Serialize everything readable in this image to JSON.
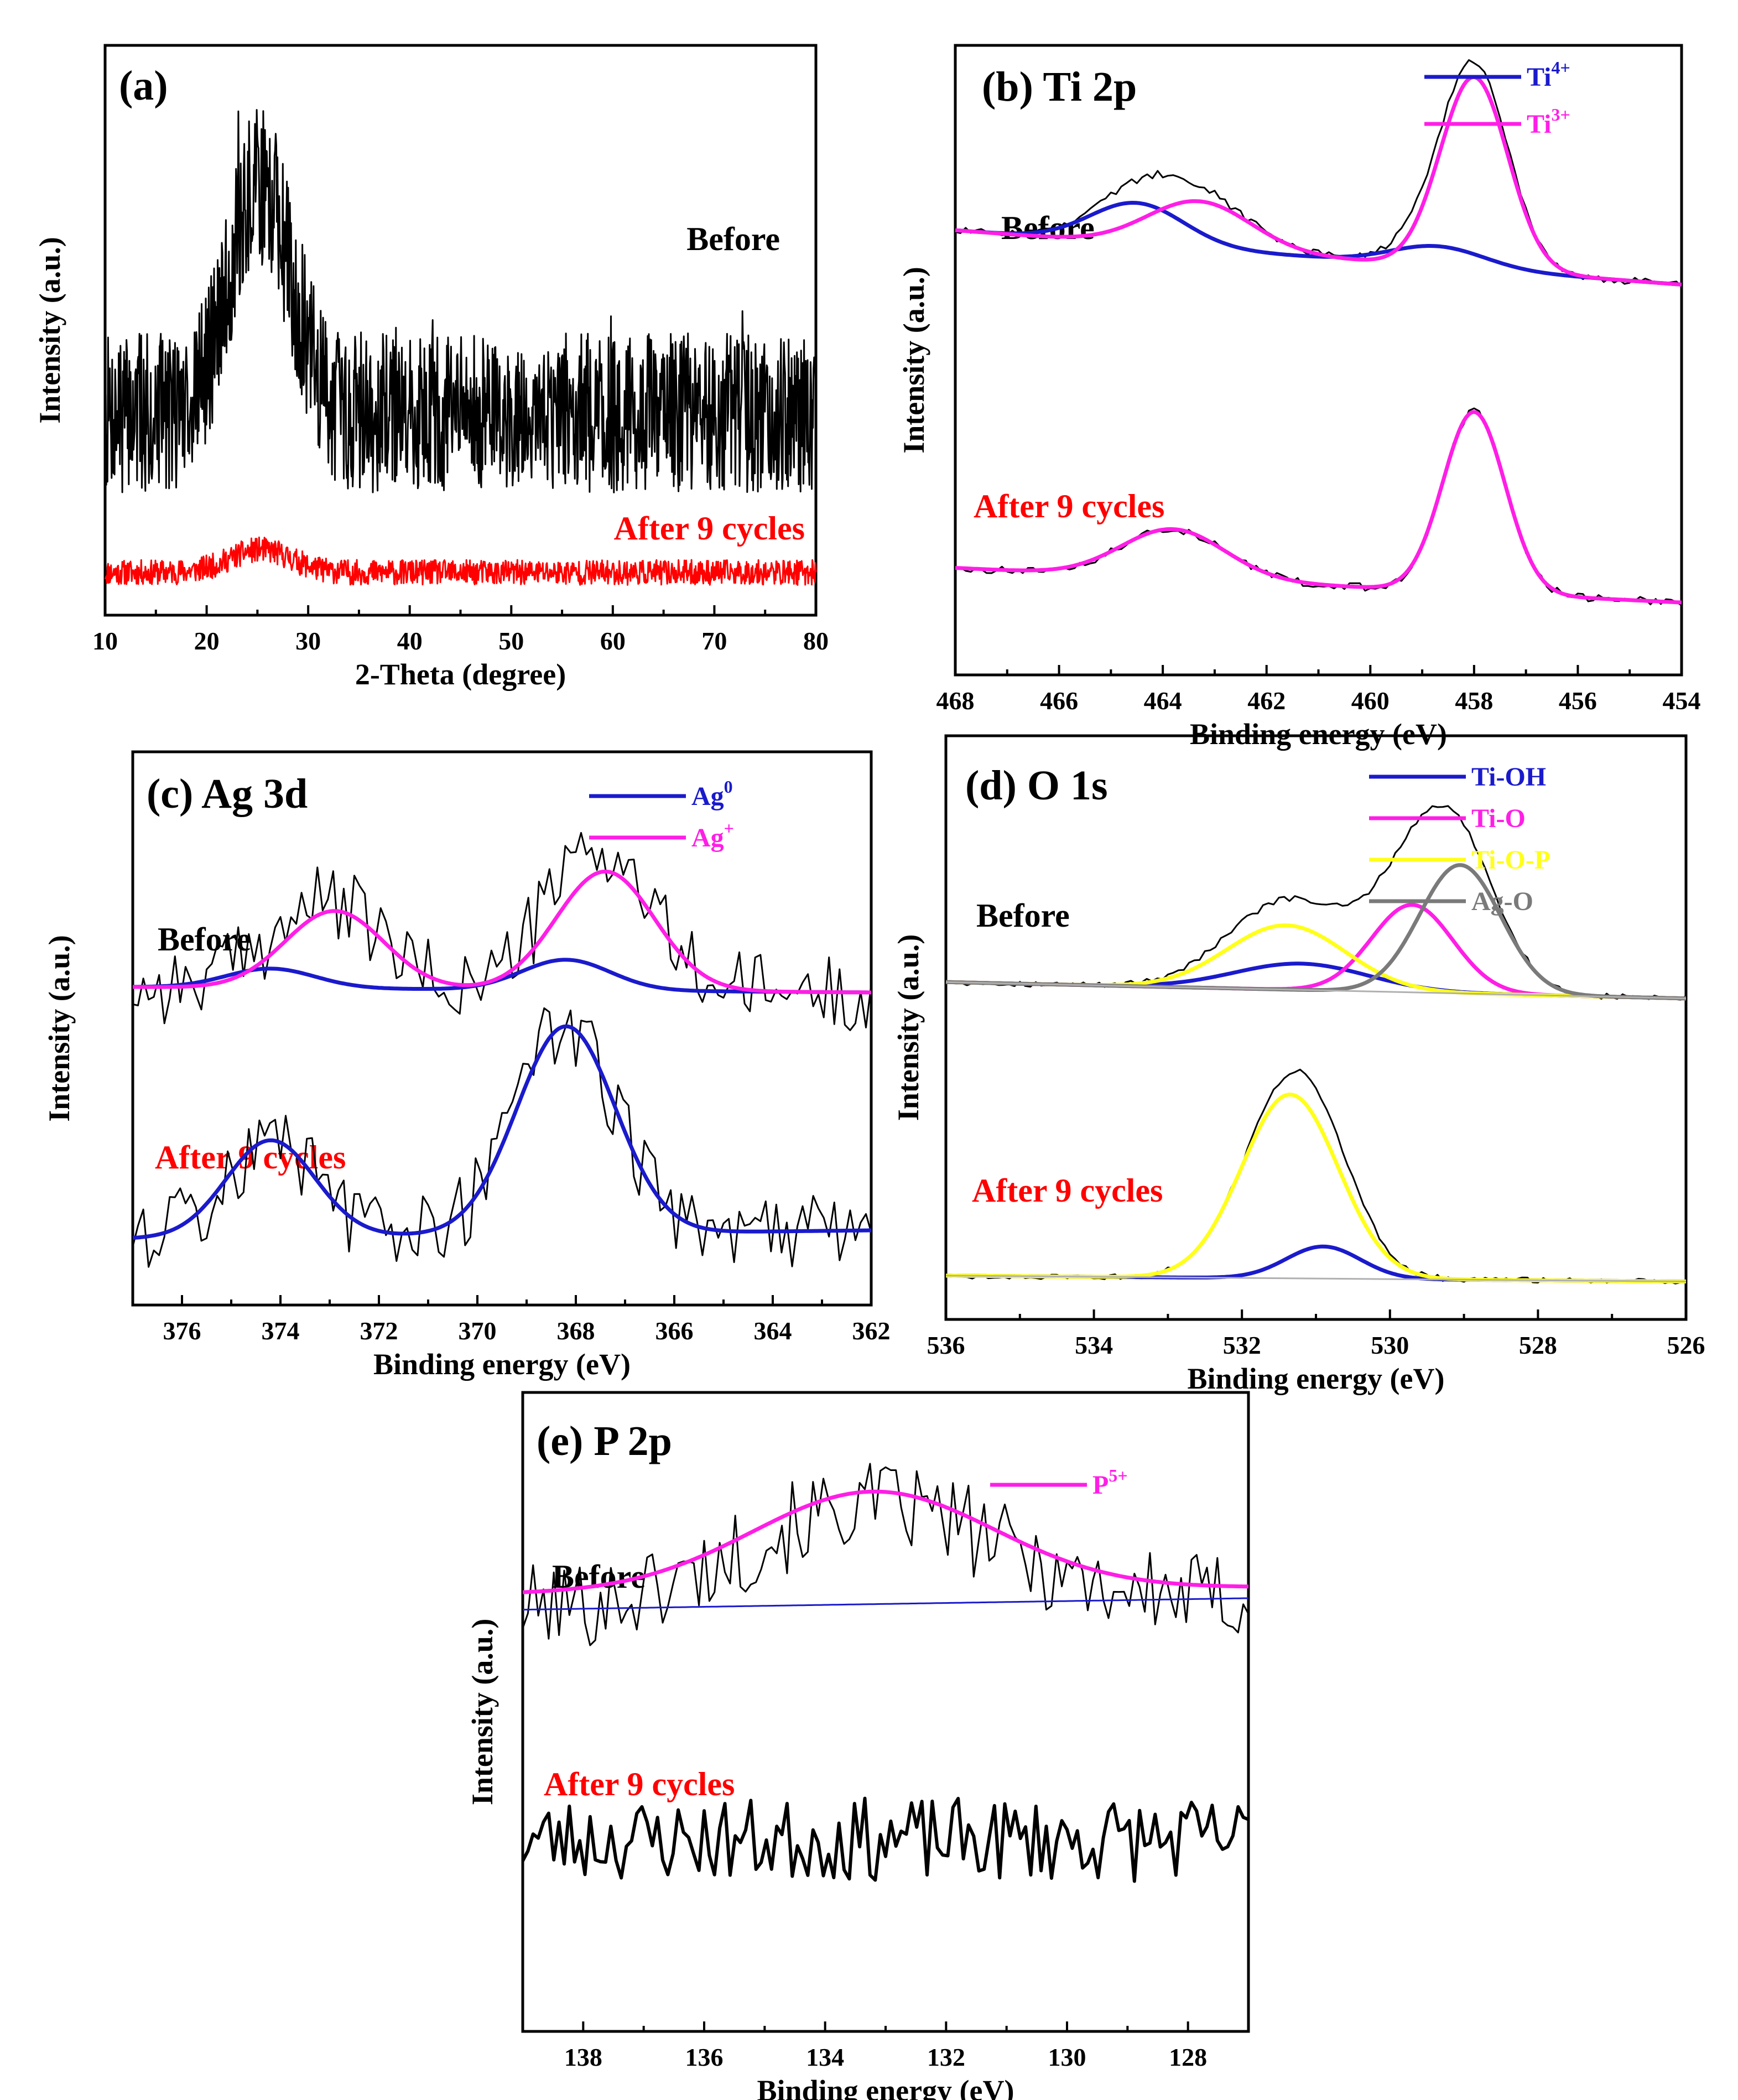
{
  "figure": {
    "description_labels": {
      "before": "Before",
      "after": "After 9 cycles"
    }
  },
  "colors": {
    "black": "#000000",
    "red": "#ff0000",
    "blue": "#1a1acc",
    "magenta": "#ff1ee6",
    "yellow": "#ffff1a",
    "gray": "#7a7a7a",
    "baseline_gray": "#b0b0b0"
  },
  "chart_data": [
    {
      "id": "a",
      "type": "line",
      "title": "(a)",
      "xlabel": "2-Theta (degree)",
      "ylabel": "Intensity (a.u.)",
      "xlim": [
        10,
        80
      ],
      "xticks": [
        10,
        20,
        30,
        40,
        50,
        60,
        70,
        80
      ],
      "ylim": [
        0,
        100
      ],
      "annotations": [
        "Before",
        "After 9 cycles"
      ],
      "series": [
        {
          "name": "Before",
          "color": "#000000",
          "kind": "xrd_noisy",
          "baseline": 35.5,
          "noise": 14,
          "peak_center": 25.3,
          "peak_height": 40,
          "peak_width": 3,
          "seed": 7
        },
        {
          "name": "After 9 cycles",
          "color": "#ff0000",
          "kind": "xrd_noisy",
          "baseline": 7.5,
          "noise": 2.2,
          "peak_center": 25.3,
          "peak_height": 4,
          "peak_width": 3,
          "seed": 11
        }
      ]
    },
    {
      "id": "b",
      "type": "line",
      "title": "(b)  Ti 2p",
      "xlabel": "Binding energy (eV)",
      "ylabel": "Intensity (a.u.)",
      "xlim": [
        468,
        454
      ],
      "xticks": [
        468,
        466,
        464,
        462,
        460,
        458,
        456,
        454
      ],
      "ylim": [
        0,
        100
      ],
      "annotations": [
        "Before",
        "After 9 cycles"
      ],
      "legend": [
        {
          "label": "Ti",
          "sup": "4+",
          "color": "#1a1acc"
        },
        {
          "label": "Ti",
          "sup": "3+",
          "color": "#ff1ee6"
        }
      ],
      "series": [
        {
          "name": "Before raw",
          "color": "#000000",
          "kind": "raw",
          "group": "before"
        },
        {
          "name": "Before Ti4+",
          "color": "#1a1acc",
          "peaks": [
            {
              "center": 464.5,
              "height": 6.5,
              "width": 0.9
            },
            {
              "center": 458.7,
              "height": 3.2,
              "width": 0.9
            }
          ],
          "baseline": [
            467.3,
            70.2,
            454,
            62.0
          ]
        },
        {
          "name": "Before Ti3+",
          "color": "#ff1ee6",
          "peaks": [
            {
              "center": 463.3,
              "height": 7.5,
              "width": 1.0
            },
            {
              "center": 458.0,
              "height": 30.5,
              "width": 0.65
            }
          ],
          "baseline": [
            467.3,
            70.2,
            454,
            62.0
          ]
        },
        {
          "name": "After raw",
          "color": "#000000",
          "kind": "raw",
          "group": "after"
        },
        {
          "name": "After Ti3+",
          "color": "#ff1ee6",
          "peaks": [
            {
              "center": 463.8,
              "height": 7.8,
              "width": 1.0
            },
            {
              "center": 458.0,
              "height": 28.7,
              "width": 0.6
            }
          ],
          "baseline": [
            468,
            17.0,
            454,
            11.5
          ]
        }
      ]
    },
    {
      "id": "c",
      "type": "line",
      "title": "(c) Ag 3d",
      "xlabel": "Binding energy (eV)",
      "ylabel": "Intensity (a.u.)",
      "xlim": [
        377,
        362
      ],
      "xticks": [
        376,
        374,
        372,
        370,
        368,
        366,
        364,
        362
      ],
      "ylim": [
        0,
        100
      ],
      "annotations": [
        "Before",
        "After 9 cycles"
      ],
      "legend": [
        {
          "label": "Ag",
          "sup": "0",
          "color": "#1a1acc"
        },
        {
          "label": "Ag",
          "sup": "+",
          "color": "#ff1ee6"
        }
      ],
      "series": [
        {
          "name": "Before raw",
          "color": "#000000",
          "kind": "raw",
          "group": "before"
        },
        {
          "name": "Before Ag0",
          "color": "#1a1acc",
          "peaks": [
            {
              "center": 374.2,
              "height": 3.5,
              "width": 0.9
            },
            {
              "center": 368.2,
              "height": 5.5,
              "width": 0.9
            }
          ],
          "baseline": [
            377,
            57.5,
            362,
            56.5
          ]
        },
        {
          "name": "Before Ag+",
          "color": "#ff1ee6",
          "peaks": [
            {
              "center": 372.9,
              "height": 14.0,
              "width": 1.0
            },
            {
              "center": 367.4,
              "height": 21.5,
              "width": 1.0
            }
          ],
          "baseline": [
            377,
            57.5,
            362,
            56.5
          ]
        },
        {
          "name": "After raw",
          "color": "#000000",
          "kind": "raw",
          "group": "after"
        },
        {
          "name": "After Ag0",
          "color": "#1a1acc",
          "peaks": [
            {
              "center": 374.2,
              "height": 17.5,
              "width": 0.9
            },
            {
              "center": 368.2,
              "height": 37.5,
              "width": 1.0
            }
          ],
          "baseline": [
            377,
            12.0,
            362,
            13.5
          ]
        }
      ]
    },
    {
      "id": "d",
      "type": "line",
      "title": "(d) O 1s",
      "xlabel": "Binding energy (eV)",
      "ylabel": "Intensity (a.u.)",
      "xlim": [
        536,
        526
      ],
      "xticks": [
        536,
        534,
        532,
        530,
        528,
        526
      ],
      "ylim": [
        0,
        100
      ],
      "annotations": [
        "Before",
        "After 9 cycles"
      ],
      "legend": [
        {
          "label": "Ti-OH",
          "color": "#1a1acc"
        },
        {
          "label": "Ti-O",
          "color": "#ff1ee6"
        },
        {
          "label": "Ti-O-P",
          "color": "#ffff1a"
        },
        {
          "label": "Ag-O",
          "color": "#7a7a7a"
        }
      ],
      "series": [
        {
          "name": "Before raw",
          "color": "#000000",
          "kind": "raw",
          "group": "before"
        },
        {
          "name": "Before Ti-OH",
          "color": "#1a1acc",
          "peaks": [
            {
              "center": 531.2,
              "height": 4.5,
              "width": 0.9
            }
          ],
          "baseline": [
            536,
            57.8,
            526,
            55.0
          ]
        },
        {
          "name": "Before Ti-O",
          "color": "#ff1ee6",
          "peaks": [
            {
              "center": 529.7,
              "height": 15.0,
              "width": 0.55
            }
          ],
          "baseline": [
            536,
            57.8,
            526,
            55.0
          ]
        },
        {
          "name": "Before Ti-O-P",
          "color": "#ffff1a",
          "peaks": [
            {
              "center": 531.4,
              "height": 11.0,
              "width": 0.8
            }
          ],
          "baseline": [
            536,
            57.8,
            526,
            55.0
          ]
        },
        {
          "name": "Before Ag-O",
          "color": "#7a7a7a",
          "peaks": [
            {
              "center": 529.05,
              "height": 22.0,
              "width": 0.55
            }
          ],
          "baseline": [
            536,
            57.8,
            526,
            55.0
          ]
        },
        {
          "name": "After raw",
          "color": "#000000",
          "kind": "raw",
          "group": "after"
        },
        {
          "name": "After Ti-OH",
          "color": "#1a1acc",
          "peaks": [
            {
              "center": 530.9,
              "height": 5.5,
              "width": 0.5
            }
          ],
          "baseline": [
            536,
            7.5,
            526,
            6.5
          ]
        },
        {
          "name": "After Ti-O-P",
          "color": "#ffff1a",
          "peaks": [
            {
              "center": 531.35,
              "height": 31.5,
              "width": 0.65
            }
          ],
          "baseline": [
            536,
            7.5,
            526,
            6.5
          ]
        }
      ]
    },
    {
      "id": "e",
      "type": "line",
      "title": "(e) P 2p",
      "xlabel": "Binding energy (eV)",
      "ylabel": "Intensity (a.u.)",
      "xlim": [
        139,
        127
      ],
      "xticks": [
        138,
        136,
        134,
        132,
        130,
        128
      ],
      "ylim": [
        0,
        100
      ],
      "annotations": [
        "Before",
        "After 9 cycles"
      ],
      "legend": [
        {
          "label": "P",
          "sup": "5+",
          "color": "#ff1ee6"
        }
      ],
      "series": [
        {
          "name": "Before raw",
          "color": "#000000",
          "kind": "raw",
          "group": "before"
        },
        {
          "name": "Before baseline",
          "color": "#1a1acc",
          "peaks": [],
          "baseline": [
            139,
            66.0,
            127,
            67.8
          ]
        },
        {
          "name": "Before P5+",
          "color": "#ff1ee6",
          "peaks": [
            {
              "center": 133.2,
              "height": 15.5,
              "width": 2.0
            }
          ],
          "baseline": [
            139,
            68.5,
            127,
            69.5
          ]
        },
        {
          "name": "After 9 cycles",
          "color": "#000000",
          "kind": "noise",
          "level": 30.0,
          "noise": 6.5,
          "seed": 23
        }
      ]
    }
  ]
}
